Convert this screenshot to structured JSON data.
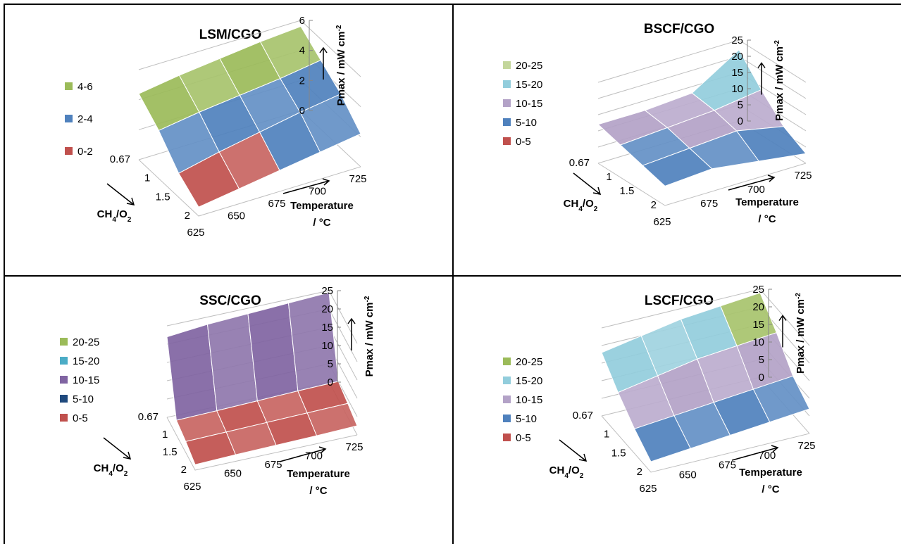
{
  "chart_data": [
    {
      "type": "surface",
      "title": "LSM/CGO",
      "x_label": "Temperature",
      "x_unit": "/ °C",
      "y_label_main": "CH",
      "y_label_sub1": "4",
      "y_label_mid": "/O",
      "y_label_sub2": "2",
      "z_label": "Pmax / mW cm",
      "z_label_sup": "-2",
      "x_ticks": [
        "625",
        "650",
        "675",
        "700",
        "725"
      ],
      "y_ticks": [
        "0.67",
        "1",
        "1.5",
        "2"
      ],
      "z_ticks": [
        "0",
        "2",
        "4",
        "6"
      ],
      "zlim": [
        0,
        6
      ],
      "legend": [
        {
          "label": "4-6",
          "color": "#9bbb59"
        },
        {
          "label": "2-4",
          "color": "#4f81bd"
        },
        {
          "label": "0-2",
          "color": "#c0504d"
        }
      ],
      "values": [
        [
          4.4,
          4.8,
          5.1,
          5.4,
          5.6
        ],
        [
          3.2,
          3.6,
          3.9,
          4.2,
          4.6
        ],
        [
          1.6,
          2.2,
          2.7,
          3.2,
          3.6
        ],
        [
          0.6,
          1.0,
          1.4,
          1.8,
          2.2
        ]
      ]
    },
    {
      "type": "surface",
      "title": "BSCF/CGO",
      "x_label": "Temperature",
      "x_unit": "/ °C",
      "y_label_main": "CH",
      "y_label_sub1": "4",
      "y_label_mid": "/O",
      "y_label_sub2": "2",
      "z_label": "Pmax / mW cm",
      "z_label_sup": "-2",
      "x_ticks": [
        "625",
        "675",
        "700",
        "725"
      ],
      "y_ticks": [
        "0.67",
        "1",
        "1.5",
        "2"
      ],
      "z_ticks": [
        "0",
        "5",
        "10",
        "15",
        "20",
        "25"
      ],
      "zlim": [
        0,
        25
      ],
      "legend": [
        {
          "label": "20-25",
          "color": "#c3d69b"
        },
        {
          "label": "15-20",
          "color": "#92cddc"
        },
        {
          "label": "10-15",
          "color": "#b3a2c7"
        },
        {
          "label": "5-10",
          "color": "#4f81bd"
        },
        {
          "label": "0-5",
          "color": "#c0504d"
        }
      ],
      "values": [
        [
          12,
          12,
          13,
          22
        ],
        [
          10,
          11,
          12,
          14
        ],
        [
          8,
          9,
          10,
          7
        ],
        [
          6,
          7,
          5,
          3
        ]
      ]
    },
    {
      "type": "surface",
      "title": "SSC/CGO",
      "x_label": "Temperature",
      "x_unit": "/ °C",
      "y_label_main": "CH",
      "y_label_sub1": "4",
      "y_label_mid": "/O",
      "y_label_sub2": "2",
      "z_label": "Pmax / mW cm",
      "z_label_sup": "-2",
      "x_ticks": [
        "625",
        "650",
        "675",
        "700",
        "725"
      ],
      "y_ticks": [
        "0.67",
        "1",
        "1.5",
        "2"
      ],
      "z_ticks": [
        "0",
        "5",
        "10",
        "15",
        "20",
        "25"
      ],
      "zlim": [
        0,
        25
      ],
      "legend": [
        {
          "label": "20-25",
          "color": "#9bbb59"
        },
        {
          "label": "15-20",
          "color": "#4bacc6"
        },
        {
          "label": "10-15",
          "color": "#8064a2"
        },
        {
          "label": "5-10",
          "color": "#1f497d"
        },
        {
          "label": "0-5",
          "color": "#c0504d"
        }
      ],
      "values": [
        [
          22,
          23,
          23.5,
          24,
          24.5
        ],
        [
          4,
          4.2,
          4.5,
          4.8,
          5
        ],
        [
          3,
          3.2,
          3.4,
          3.6,
          3.8
        ],
        [
          1.5,
          1.8,
          2,
          2.2,
          2.5
        ]
      ]
    },
    {
      "type": "surface",
      "title": "LSCF/CGO",
      "x_label": "Temperature",
      "x_unit": "/ °C",
      "y_label_main": "CH",
      "y_label_sub1": "4",
      "y_label_mid": "/O",
      "y_label_sub2": "2",
      "z_label": "Pmax / mW cm",
      "z_label_sup": "-2",
      "x_ticks": [
        "625",
        "650",
        "675",
        "700",
        "725"
      ],
      "y_ticks": [
        "0.67",
        "1",
        "1.5",
        "2"
      ],
      "z_ticks": [
        "0",
        "5",
        "10",
        "15",
        "20",
        "25"
      ],
      "zlim": [
        0,
        25
      ],
      "legend": [
        {
          "label": "20-25",
          "color": "#9bbb59"
        },
        {
          "label": "15-20",
          "color": "#92cddc"
        },
        {
          "label": "10-15",
          "color": "#b3a2c7"
        },
        {
          "label": "5-10",
          "color": "#4f81bd"
        },
        {
          "label": "0-5",
          "color": "#c0504d"
        }
      ],
      "values": [
        [
          18,
          20,
          22,
          23,
          24
        ],
        [
          12,
          14,
          16,
          17,
          18
        ],
        [
          7,
          8,
          9,
          10,
          11
        ],
        [
          3,
          4,
          5,
          6,
          7
        ]
      ]
    }
  ]
}
